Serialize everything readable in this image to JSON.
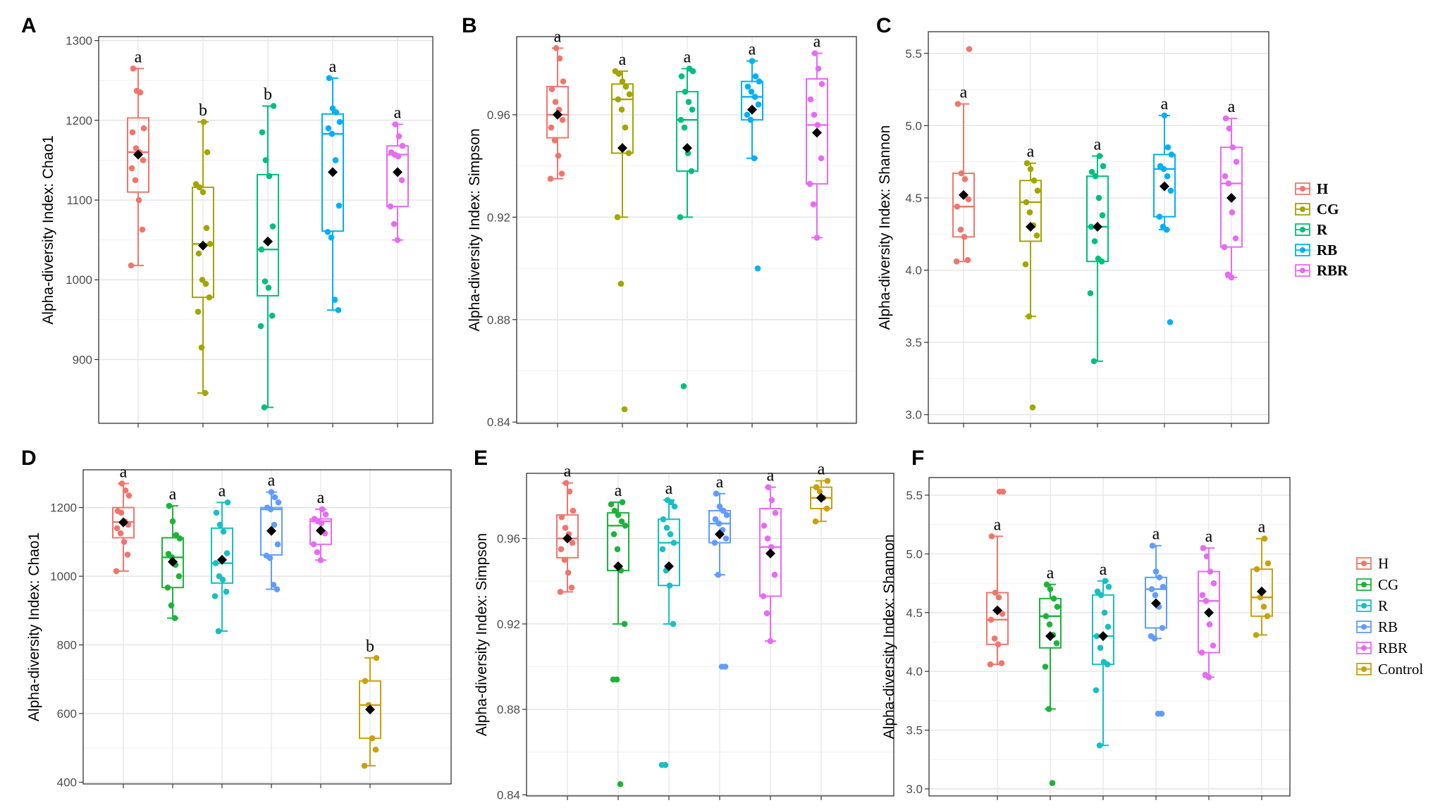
{
  "colors": {
    "H": "#f0766d",
    "CG": "#a3a500",
    "R": "#00bf7d",
    "RB": "#00b0f6",
    "RBR": "#e76bf3",
    "CG2": "#1db33a",
    "R2": "#18bfc4",
    "RB2": "#619cff",
    "Control": "#c9a10d"
  },
  "chart_data": [
    {
      "panel": "A",
      "type": "box",
      "ylabel": "Alpha-diversity Index: Chao1",
      "ylim": [
        820,
        1305
      ],
      "ticks": [
        900,
        1000,
        1100,
        1200,
        1300
      ],
      "groups": [
        {
          "name": "H",
          "color": "H",
          "whisker": [
            1018,
            1265
          ],
          "q1": 1110,
          "median": 1160,
          "q3": 1203,
          "mean": 1157,
          "sig": "a",
          "points": [
            1018,
            1063,
            1100,
            1125,
            1140,
            1150,
            1160,
            1165,
            1185,
            1190,
            1235,
            1237,
            1265
          ]
        },
        {
          "name": "CG",
          "color": "CG",
          "whisker": [
            858,
            1198
          ],
          "q1": 978,
          "median": 1045,
          "q3": 1116,
          "mean": 1043,
          "sig": "b",
          "points": [
            858,
            915,
            960,
            978,
            995,
            1000,
            1033,
            1045,
            1065,
            1110,
            1116,
            1120,
            1160,
            1198
          ]
        },
        {
          "name": "R",
          "color": "R",
          "whisker": [
            840,
            1218
          ],
          "q1": 980,
          "median": 1038,
          "q3": 1132,
          "mean": 1048,
          "sig": "b",
          "points": [
            840,
            942,
            955,
            990,
            998,
            1038,
            1067,
            1130,
            1150,
            1185,
            1218
          ]
        },
        {
          "name": "RB",
          "color": "RB",
          "whisker": [
            962,
            1253
          ],
          "q1": 1061,
          "median": 1183,
          "q3": 1208,
          "mean": 1135,
          "sig": "a",
          "points": [
            962,
            975,
            1053,
            1060,
            1093,
            1150,
            1183,
            1190,
            1198,
            1210,
            1215,
            1253
          ]
        },
        {
          "name": "RBR",
          "color": "RBR",
          "whisker": [
            1050,
            1195
          ],
          "q1": 1092,
          "median": 1157,
          "q3": 1168,
          "mean": 1135,
          "sig": "a",
          "points": [
            1050,
            1070,
            1092,
            1125,
            1155,
            1157,
            1160,
            1168,
            1180,
            1195
          ]
        }
      ]
    },
    {
      "panel": "B",
      "type": "box",
      "ylabel": "Alpha-diversity Index: Simpson",
      "ylim": [
        0.8395,
        0.9905
      ],
      "ticks": [
        0.84,
        0.88,
        0.92,
        0.96
      ],
      "ticklabels": [
        "0.84",
        "0.88",
        "0.92",
        "0.96"
      ],
      "groups": [
        {
          "name": "H",
          "color": "H",
          "whisker": [
            0.935,
            0.986
          ],
          "q1": 0.951,
          "median": 0.96,
          "q3": 0.971,
          "mean": 0.96,
          "sig": "a",
          "points": [
            0.935,
            0.937,
            0.944,
            0.95,
            0.955,
            0.958,
            0.962,
            0.965,
            0.97,
            0.973,
            0.982,
            0.986
          ]
        },
        {
          "name": "CG",
          "color": "CG",
          "whisker": [
            0.92,
            0.977
          ],
          "q1": 0.945,
          "median": 0.966,
          "q3": 0.972,
          "mean": 0.947,
          "sig": "a",
          "points": [
            0.845,
            0.894,
            0.92,
            0.945,
            0.955,
            0.962,
            0.966,
            0.968,
            0.971,
            0.973,
            0.976,
            0.977
          ]
        },
        {
          "name": "R",
          "color": "R",
          "whisker": [
            0.92,
            0.978
          ],
          "q1": 0.938,
          "median": 0.958,
          "q3": 0.969,
          "mean": 0.947,
          "sig": "a",
          "points": [
            0.854,
            0.92,
            0.938,
            0.945,
            0.955,
            0.958,
            0.962,
            0.965,
            0.969,
            0.975,
            0.977,
            0.978
          ]
        },
        {
          "name": "RB",
          "color": "RB",
          "whisker": [
            0.943,
            0.981
          ],
          "q1": 0.958,
          "median": 0.967,
          "q3": 0.973,
          "mean": 0.962,
          "sig": "a",
          "points": [
            0.9,
            0.943,
            0.958,
            0.96,
            0.964,
            0.967,
            0.969,
            0.971,
            0.973,
            0.975,
            0.981
          ]
        },
        {
          "name": "RBR",
          "color": "RBR",
          "whisker": [
            0.912,
            0.984
          ],
          "q1": 0.933,
          "median": 0.956,
          "q3": 0.974,
          "mean": 0.953,
          "sig": "a",
          "points": [
            0.912,
            0.925,
            0.933,
            0.943,
            0.956,
            0.96,
            0.966,
            0.972,
            0.978,
            0.984
          ]
        }
      ]
    },
    {
      "panel": "C",
      "type": "box",
      "ylabel": "Alpha-diversity Index: Shannon",
      "ylim": [
        2.94,
        5.65
      ],
      "ticks": [
        3.0,
        3.5,
        4.0,
        4.5,
        5.0,
        5.5
      ],
      "ticklabels": [
        "3.0",
        "3.5",
        "4.0",
        "4.5",
        "5.0",
        "5.5"
      ],
      "groups": [
        {
          "name": "H",
          "color": "H",
          "whisker": [
            4.06,
            5.15
          ],
          "q1": 4.23,
          "median": 4.44,
          "q3": 4.67,
          "mean": 4.52,
          "sig": "a",
          "points": [
            4.06,
            4.07,
            4.23,
            4.28,
            4.44,
            4.49,
            4.63,
            4.67,
            5.15,
            5.53
          ]
        },
        {
          "name": "CG",
          "color": "CG",
          "whisker": [
            3.68,
            4.74
          ],
          "q1": 4.2,
          "median": 4.47,
          "q3": 4.62,
          "mean": 4.3,
          "sig": "a",
          "points": [
            3.05,
            3.68,
            4.04,
            4.24,
            4.31,
            4.4,
            4.47,
            4.55,
            4.62,
            4.7,
            4.74
          ]
        },
        {
          "name": "R",
          "color": "R",
          "whisker": [
            3.37,
            4.79
          ],
          "q1": 4.06,
          "median": 4.3,
          "q3": 4.65,
          "mean": 4.3,
          "sig": "a",
          "points": [
            3.37,
            3.84,
            4.06,
            4.08,
            4.2,
            4.3,
            4.38,
            4.5,
            4.65,
            4.68,
            4.72,
            4.79
          ]
        },
        {
          "name": "RB",
          "color": "RB",
          "whisker": [
            4.28,
            5.07
          ],
          "q1": 4.37,
          "median": 4.7,
          "q3": 4.8,
          "mean": 4.58,
          "sig": "a",
          "points": [
            3.64,
            4.28,
            4.3,
            4.37,
            4.55,
            4.65,
            4.7,
            4.72,
            4.8,
            4.85,
            5.07
          ]
        },
        {
          "name": "RBR",
          "color": "RBR",
          "whisker": [
            3.95,
            5.05
          ],
          "q1": 4.16,
          "median": 4.6,
          "q3": 4.85,
          "mean": 4.5,
          "sig": "a",
          "points": [
            3.95,
            3.97,
            4.16,
            4.22,
            4.4,
            4.6,
            4.65,
            4.75,
            4.85,
            4.98,
            5.05
          ]
        }
      ]
    },
    {
      "panel": "D",
      "type": "box",
      "ylabel": "Alpha-diversity Index: Chao1",
      "ylim": [
        395,
        1310
      ],
      "ticks": [
        400,
        600,
        800,
        1000,
        1200
      ],
      "groups": [
        {
          "name": "H",
          "color": "H",
          "whisker": [
            1015,
            1270
          ],
          "q1": 1112,
          "median": 1158,
          "q3": 1200,
          "mean": 1157,
          "sig": "a",
          "points": [
            1015,
            1063,
            1100,
            1125,
            1140,
            1150,
            1160,
            1185,
            1190,
            1235,
            1250,
            1270
          ]
        },
        {
          "name": "CG",
          "color": "CG2",
          "whisker": [
            878,
            1205
          ],
          "q1": 967,
          "median": 1055,
          "q3": 1112,
          "mean": 1042,
          "sig": "a",
          "points": [
            878,
            915,
            967,
            1000,
            1033,
            1055,
            1065,
            1110,
            1120,
            1160,
            1205
          ]
        },
        {
          "name": "R",
          "color": "R2",
          "whisker": [
            840,
            1215
          ],
          "q1": 980,
          "median": 1038,
          "q3": 1140,
          "mean": 1048,
          "sig": "a",
          "points": [
            840,
            942,
            955,
            990,
            1000,
            1038,
            1067,
            1130,
            1150,
            1185,
            1215
          ]
        },
        {
          "name": "RB",
          "color": "RB2",
          "whisker": [
            962,
            1245
          ],
          "q1": 1062,
          "median": 1195,
          "q3": 1200,
          "mean": 1132,
          "sig": "a",
          "points": [
            962,
            975,
            1053,
            1060,
            1093,
            1150,
            1195,
            1200,
            1215,
            1230,
            1245
          ]
        },
        {
          "name": "RBR",
          "color": "RBR",
          "whisker": [
            1047,
            1195
          ],
          "q1": 1093,
          "median": 1160,
          "q3": 1167,
          "mean": 1133,
          "sig": "a",
          "points": [
            1047,
            1070,
            1093,
            1125,
            1155,
            1160,
            1167,
            1180,
            1195
          ]
        },
        {
          "name": "Control",
          "color": "Control",
          "whisker": [
            448,
            762
          ],
          "q1": 528,
          "median": 625,
          "q3": 695,
          "mean": 612,
          "sig": "b",
          "points": [
            448,
            495,
            528,
            625,
            695,
            762
          ]
        }
      ]
    },
    {
      "panel": "E",
      "type": "box",
      "ylabel": "Alpha-diversity Index: Simpson",
      "ylim": [
        0.8395,
        0.9905
      ],
      "ticks": [
        0.84,
        0.88,
        0.92,
        0.96
      ],
      "ticklabels": [
        "0.84",
        "0.88",
        "0.92",
        "0.96"
      ],
      "groups": [
        {
          "name": "H",
          "color": "H",
          "whisker": [
            0.935,
            0.986
          ],
          "q1": 0.951,
          "median": 0.96,
          "q3": 0.971,
          "mean": 0.96,
          "sig": "a",
          "points": [
            0.935,
            0.937,
            0.944,
            0.95,
            0.955,
            0.958,
            0.962,
            0.965,
            0.97,
            0.973,
            0.982,
            0.986
          ]
        },
        {
          "name": "CG",
          "color": "CG2",
          "whisker": [
            0.92,
            0.977
          ],
          "q1": 0.945,
          "median": 0.966,
          "q3": 0.972,
          "mean": 0.947,
          "sig": "a",
          "points": [
            0.845,
            0.894,
            0.894,
            0.92,
            0.945,
            0.955,
            0.962,
            0.966,
            0.968,
            0.971,
            0.973,
            0.976,
            0.977
          ]
        },
        {
          "name": "R",
          "color": "R2",
          "whisker": [
            0.92,
            0.978
          ],
          "q1": 0.938,
          "median": 0.958,
          "q3": 0.969,
          "mean": 0.947,
          "sig": "a",
          "points": [
            0.854,
            0.854,
            0.92,
            0.938,
            0.945,
            0.955,
            0.958,
            0.962,
            0.965,
            0.969,
            0.975,
            0.977,
            0.978
          ]
        },
        {
          "name": "RB",
          "color": "RB2",
          "whisker": [
            0.943,
            0.981
          ],
          "q1": 0.958,
          "median": 0.967,
          "q3": 0.973,
          "mean": 0.962,
          "sig": "a",
          "points": [
            0.9,
            0.9,
            0.943,
            0.958,
            0.96,
            0.964,
            0.967,
            0.969,
            0.971,
            0.973,
            0.975,
            0.981
          ]
        },
        {
          "name": "RBR",
          "color": "RBR",
          "whisker": [
            0.912,
            0.984
          ],
          "q1": 0.933,
          "median": 0.956,
          "q3": 0.974,
          "mean": 0.953,
          "sig": "a",
          "points": [
            0.912,
            0.925,
            0.933,
            0.943,
            0.956,
            0.96,
            0.966,
            0.972,
            0.978,
            0.984
          ]
        },
        {
          "name": "Control",
          "color": "Control",
          "whisker": [
            0.968,
            0.987
          ],
          "q1": 0.974,
          "median": 0.979,
          "q3": 0.984,
          "mean": 0.979,
          "sig": "a",
          "points": [
            0.968,
            0.974,
            0.979,
            0.982,
            0.984,
            0.987
          ]
        }
      ]
    },
    {
      "panel": "F",
      "type": "box",
      "ylabel": "Alpha-diversity Index: Shannon",
      "ylim": [
        2.94,
        5.65
      ],
      "ticks": [
        3.0,
        3.5,
        4.0,
        4.5,
        5.0,
        5.5
      ],
      "ticklabels": [
        "3.0",
        "3.5",
        "4.0",
        "4.5",
        "5.0",
        "5.5"
      ],
      "groups": [
        {
          "name": "H",
          "color": "H",
          "whisker": [
            4.06,
            5.15
          ],
          "q1": 4.23,
          "median": 4.44,
          "q3": 4.67,
          "mean": 4.52,
          "sig": "a",
          "points": [
            4.06,
            4.07,
            4.23,
            4.28,
            4.44,
            4.49,
            4.63,
            4.67,
            5.15,
            5.53,
            5.53
          ]
        },
        {
          "name": "CG",
          "color": "CG2",
          "whisker": [
            3.68,
            4.74
          ],
          "q1": 4.2,
          "median": 4.47,
          "q3": 4.62,
          "mean": 4.3,
          "sig": "a",
          "points": [
            3.05,
            3.68,
            4.04,
            4.24,
            4.31,
            4.4,
            4.47,
            4.55,
            4.62,
            4.7,
            4.74
          ]
        },
        {
          "name": "R",
          "color": "R2",
          "whisker": [
            3.37,
            4.77
          ],
          "q1": 4.06,
          "median": 4.3,
          "q3": 4.65,
          "mean": 4.3,
          "sig": "a",
          "points": [
            3.37,
            3.84,
            4.06,
            4.08,
            4.2,
            4.3,
            4.38,
            4.5,
            4.65,
            4.68,
            4.72,
            4.77
          ]
        },
        {
          "name": "RB",
          "color": "RB2",
          "whisker": [
            4.28,
            5.07
          ],
          "q1": 4.37,
          "median": 4.7,
          "q3": 4.8,
          "mean": 4.58,
          "sig": "a",
          "points": [
            3.64,
            3.64,
            4.28,
            4.3,
            4.37,
            4.55,
            4.65,
            4.7,
            4.72,
            4.8,
            4.85,
            5.07
          ]
        },
        {
          "name": "RBR",
          "color": "RBR",
          "whisker": [
            3.95,
            5.05
          ],
          "q1": 4.16,
          "median": 4.6,
          "q3": 4.85,
          "mean": 4.5,
          "sig": "a",
          "points": [
            3.95,
            3.97,
            4.16,
            4.22,
            4.4,
            4.6,
            4.65,
            4.75,
            4.85,
            4.98,
            5.05
          ]
        },
        {
          "name": "Control",
          "color": "Control",
          "whisker": [
            4.31,
            5.13
          ],
          "q1": 4.47,
          "median": 4.63,
          "q3": 4.87,
          "mean": 4.68,
          "sig": "a",
          "points": [
            4.31,
            4.47,
            4.55,
            4.63,
            4.87,
            4.92,
            5.13
          ]
        }
      ]
    }
  ],
  "legends": [
    {
      "id": "legend-top",
      "items": [
        {
          "label": "H",
          "color": "H"
        },
        {
          "label": "CG",
          "color": "CG"
        },
        {
          "label": "R",
          "color": "R"
        },
        {
          "label": "RB",
          "color": "RB"
        },
        {
          "label": "RBR",
          "color": "RBR"
        }
      ]
    },
    {
      "id": "legend-bottom",
      "items": [
        {
          "label": "H",
          "color": "H"
        },
        {
          "label": "CG",
          "color": "CG2"
        },
        {
          "label": "R",
          "color": "R2"
        },
        {
          "label": "RB",
          "color": "RB2"
        },
        {
          "label": "RBR",
          "color": "RBR"
        },
        {
          "label": "Control",
          "color": "Control"
        }
      ]
    }
  ]
}
